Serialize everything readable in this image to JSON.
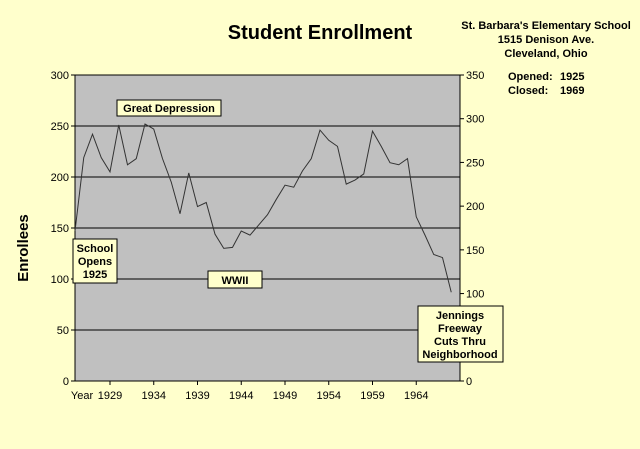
{
  "chart_data": {
    "type": "line",
    "title": "Student Enrollment",
    "ylabel": "Enrollees",
    "xlabel": "",
    "x_first_label": "Year",
    "x_tick_labels": [
      "1929",
      "1934",
      "1939",
      "1944",
      "1949",
      "1954",
      "1959",
      "1964"
    ],
    "y_ticks_left": [
      0,
      50,
      100,
      150,
      200,
      250,
      300
    ],
    "y_ticks_right": [
      0,
      50,
      100,
      150,
      200,
      250,
      300,
      350
    ],
    "ylim": [
      0,
      300
    ],
    "ylim_right": [
      0,
      350
    ],
    "xlim": [
      1925,
      1969
    ],
    "grid": "horizontal",
    "legend": "none",
    "line_color": "#333333",
    "plot_background": "#c0c0c0",
    "series": [
      {
        "x": [
          1925,
          1926,
          1927,
          1928,
          1929,
          1930,
          1931,
          1932,
          1933,
          1934,
          1935,
          1936,
          1937,
          1938,
          1939,
          1940,
          1941,
          1942,
          1943,
          1944,
          1945,
          1946,
          1947,
          1948,
          1949,
          1950,
          1951,
          1952,
          1953,
          1954,
          1955,
          1956,
          1957,
          1958,
          1959,
          1960,
          1961,
          1962,
          1963,
          1964,
          1965,
          1966,
          1967,
          1968
        ],
        "values": [
          147,
          219,
          242,
          219,
          205,
          251,
          212,
          218,
          252,
          247,
          218,
          195,
          164,
          204,
          171,
          175,
          144,
          130,
          131,
          147,
          143,
          153,
          163,
          178,
          192,
          190,
          206,
          218,
          246,
          236,
          230,
          193,
          197,
          203,
          245,
          230,
          214,
          212,
          218,
          161,
          143,
          124,
          121,
          87
        ]
      }
    ]
  },
  "school": {
    "name": "St. Barbara's Elementary School",
    "address": "1515 Denison Ave.",
    "city": "Cleveland, Ohio",
    "opened_label": "Opened:",
    "opened_value": "1925",
    "closed_label": "Closed:",
    "closed_value": "1969"
  },
  "annotations": {
    "great_depression": "Great Depression",
    "school_opens": [
      "School",
      "Opens",
      "1925"
    ],
    "wwii": "WWII",
    "jennings": [
      "Jennings",
      "Freeway",
      "Cuts Thru",
      "Neighborhood"
    ]
  }
}
